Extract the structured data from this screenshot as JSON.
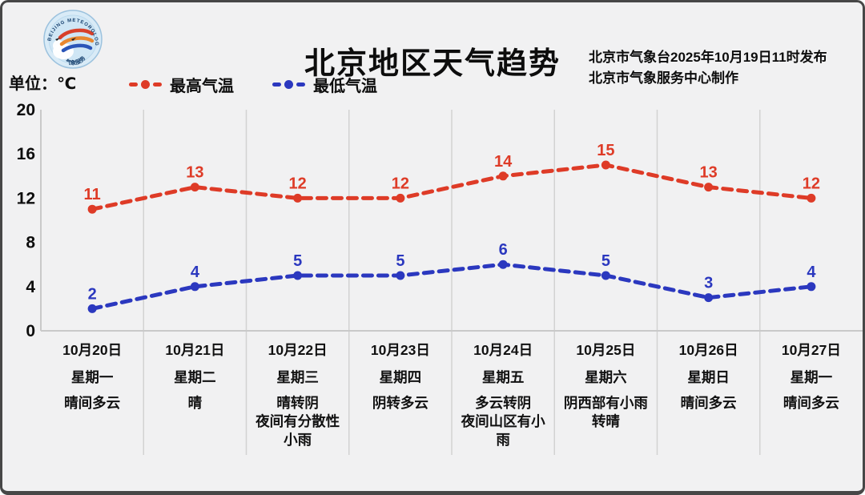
{
  "header": {
    "title": "北京地区天气趋势",
    "publisher_line1": "北京市气象台2025年10月19日11时发布",
    "publisher_line2": "北京市气象服务中心制作",
    "logo_name": "beijing-meteorological-service-badge",
    "logo_arc_text": "BEIJING METEOROLOGICAL SERVICE",
    "logo_bottom_text": "气象服务"
  },
  "meta": {
    "unit_label": "单位：℃",
    "legend": [
      {
        "label": "最高气温",
        "color": "#de3b27"
      },
      {
        "label": "最低气温",
        "color": "#2b38bf"
      }
    ]
  },
  "chart_data": {
    "type": "line",
    "title": "北京地区天气趋势",
    "ylabel": "单位：℃",
    "ylim": [
      0,
      20
    ],
    "yticks": [
      20,
      16,
      12,
      8,
      4,
      0
    ],
    "grid": "vertical-only",
    "legend_position": "top-left",
    "line_style": "dashed-with-point-markers",
    "categories": [
      "10月20日",
      "10月21日",
      "10月22日",
      "10月23日",
      "10月24日",
      "10月25日",
      "10月26日",
      "10月27日"
    ],
    "weekdays": [
      "星期一",
      "星期二",
      "星期三",
      "星期四",
      "星期五",
      "星期六",
      "星期日",
      "星期一"
    ],
    "weather": [
      [
        "晴间多云"
      ],
      [
        "晴"
      ],
      [
        "晴转阴",
        "夜间有分散性",
        "小雨"
      ],
      [
        "阴转多云"
      ],
      [
        "多云转阴",
        "夜间山区有小",
        "雨"
      ],
      [
        "阴西部有小雨",
        "转晴"
      ],
      [
        "晴间多云"
      ],
      [
        "晴间多云"
      ]
    ],
    "series": [
      {
        "name": "最高气温",
        "color": "#de3b27",
        "values": [
          11,
          13,
          12,
          12,
          14,
          15,
          13,
          12
        ]
      },
      {
        "name": "最低气温",
        "color": "#2b38bf",
        "values": [
          2,
          4,
          5,
          5,
          6,
          5,
          3,
          4
        ]
      }
    ],
    "colors": {
      "background": "#f1f1f2",
      "gridline": "#d2d2d2",
      "axis": "#c9c9c9",
      "text": "#0d0d0d"
    }
  }
}
